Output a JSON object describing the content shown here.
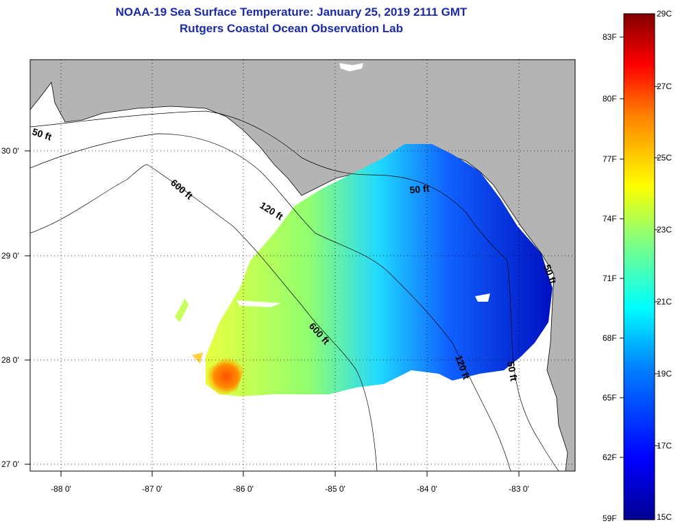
{
  "title": {
    "line1": "NOAA-19 Sea Surface Temperature:  January 25, 2019 2111 GMT",
    "line2": "Rutgers Coastal Ocean Observation Lab"
  },
  "axes": {
    "longitude_labels": [
      "-88 0'",
      "-87 0'",
      "-86 0'",
      "-85 0'",
      "-84 0'",
      "-83 0'"
    ],
    "latitude_labels": [
      "30 0'",
      "29 0'",
      "28 0'",
      "27 0'"
    ]
  },
  "contours": {
    "label_50ft": "50 ft",
    "label_120ft": "120 ft",
    "label_600ft": "600 ft"
  },
  "colorbar": {
    "fahrenheit_labels": [
      "83F",
      "80F",
      "77F",
      "74F",
      "71F",
      "68F",
      "65F",
      "62F",
      "59F"
    ],
    "celsius_labels": [
      "29C",
      "27C",
      "25C",
      "23C",
      "21C",
      "19C",
      "17C",
      "15C"
    ],
    "colors": [
      "#00008f",
      "#0000ff",
      "#0080ff",
      "#00ffff",
      "#80ff80",
      "#ffff00",
      "#ff8000",
      "#ff0000",
      "#800000"
    ]
  },
  "colors": {
    "land": "#b4b4b4",
    "water": "#ffffff",
    "title": "#1a2aa8"
  }
}
